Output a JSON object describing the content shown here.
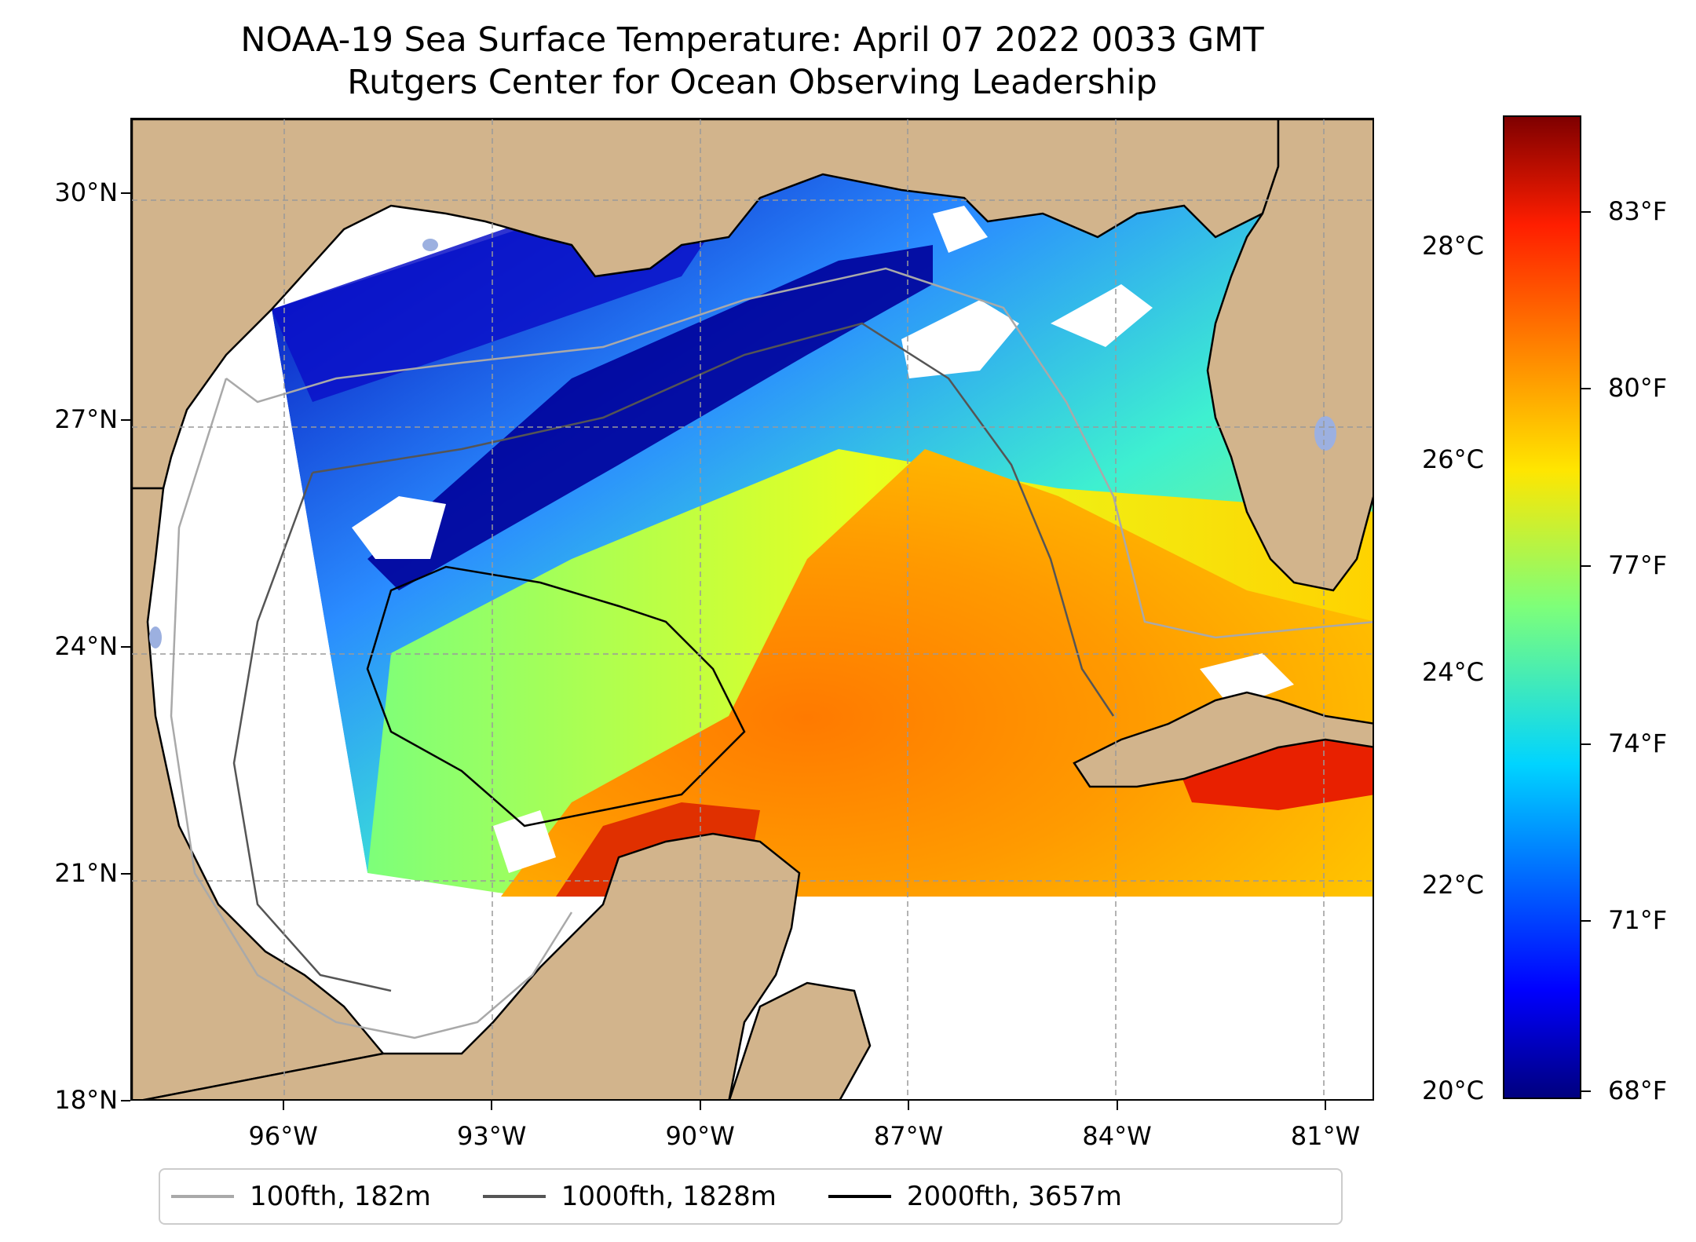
{
  "title": {
    "line1": "NOAA-19 Sea Surface Temperature: April 07 2022 0033 GMT",
    "line2": "Rutgers Center for Ocean Observing Leadership"
  },
  "map": {
    "lon_range": [
      -98.2,
      -80.3
    ],
    "lat_range": [
      18,
      31
    ],
    "lat_ticks": [
      {
        "value": 18,
        "label": "18°N"
      },
      {
        "value": 21,
        "label": "21°N"
      },
      {
        "value": 24,
        "label": "24°N"
      },
      {
        "value": 27,
        "label": "27°N"
      },
      {
        "value": 30,
        "label": "30°N"
      }
    ],
    "lon_ticks": [
      {
        "value": -96,
        "label": "96°W"
      },
      {
        "value": -93,
        "label": "93°W"
      },
      {
        "value": -90,
        "label": "90°W"
      },
      {
        "value": -87,
        "label": "87°W"
      },
      {
        "value": -84,
        "label": "84°W"
      },
      {
        "value": -81,
        "label": "81°W"
      }
    ],
    "gridlines": true,
    "colors": {
      "land": "#d2b48c",
      "no_data": "#ffffff",
      "coast": "#000000",
      "lakes": "#9cb0e0"
    }
  },
  "colorbar": {
    "colormap": "jet",
    "celsius_ticks": [
      "28°C",
      "26°C",
      "24°C",
      "22°C",
      "20°C"
    ],
    "fahrenheit_ticks": [
      "83°F",
      "80°F",
      "77°F",
      "74°F",
      "71°F",
      "68°F"
    ]
  },
  "legend": {
    "placement": "bottom",
    "items": [
      {
        "label": "100fth, 182m",
        "color": "#a9a9a9"
      },
      {
        "label": "1000fth, 1828m",
        "color": "#555555"
      },
      {
        "label": "2000fth, 3657m",
        "color": "#000000"
      }
    ]
  }
}
